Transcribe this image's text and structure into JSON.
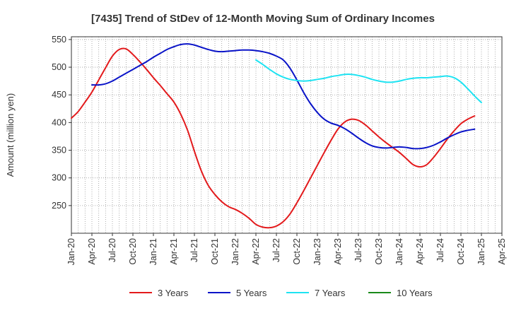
{
  "chart_data": {
    "type": "line",
    "title": "[7435]  Trend of StDev of 12-Month Moving Sum of Ordinary Incomes",
    "xlabel": "",
    "ylabel": "Amount (million yen)",
    "ylim": [
      200,
      555
    ],
    "yticks": [
      250,
      300,
      350,
      400,
      450,
      500,
      550
    ],
    "xlim": [
      "2020-01",
      "2025-04"
    ],
    "xticks": [
      "Jan-20",
      "Apr-20",
      "Jul-20",
      "Oct-20",
      "Jan-21",
      "Apr-21",
      "Jul-21",
      "Oct-21",
      "Jan-22",
      "Apr-22",
      "Jul-22",
      "Oct-22",
      "Jan-23",
      "Apr-23",
      "Jul-23",
      "Oct-23",
      "Jan-24",
      "Apr-24",
      "Jul-24",
      "Oct-24",
      "Jan-25",
      "Apr-25"
    ],
    "grid": true,
    "legend_position": "bottom",
    "series": [
      {
        "name": "3 Years",
        "color": "#e31a1c",
        "start": "2020-01",
        "values": [
          408,
          420,
          437,
          455,
          477,
          499,
          520,
          532,
          533,
          523,
          510,
          496,
          481,
          467,
          452,
          437,
          415,
          386,
          348,
          313,
          287,
          270,
          257,
          248,
          243,
          236,
          227,
          216,
          211,
          210,
          213,
          221,
          235,
          255,
          277,
          300,
          323,
          346,
          368,
          388,
          401,
          406,
          404,
          396,
          385,
          374,
          364,
          355,
          346,
          335,
          324,
          320,
          324,
          337,
          353,
          370,
          385,
          398,
          406,
          412
        ]
      },
      {
        "name": "5 Years",
        "color": "#0a14c8",
        "start": "2020-04",
        "values": [
          468,
          468,
          470,
          475,
          482,
          489,
          496,
          503,
          510,
          518,
          525,
          532,
          537,
          541,
          542,
          540,
          536,
          532,
          529,
          528,
          529,
          530,
          531,
          531,
          530,
          528,
          525,
          520,
          513,
          498,
          477,
          454,
          434,
          418,
          406,
          399,
          395,
          389,
          381,
          372,
          364,
          358,
          355,
          354,
          355,
          356,
          355,
          353,
          353,
          355,
          359,
          365,
          372,
          378,
          383,
          386,
          388
        ]
      },
      {
        "name": "7 Years",
        "color": "#1ee3f2",
        "start": "2022-04",
        "values": [
          513,
          505,
          496,
          488,
          482,
          478,
          476,
          475,
          476,
          478,
          480,
          483,
          485,
          487,
          487,
          485,
          482,
          478,
          475,
          473,
          473,
          475,
          478,
          480,
          481,
          481,
          482,
          483,
          484,
          481,
          473,
          461,
          448,
          436
        ]
      },
      {
        "name": "10 Years",
        "color": "#1a8a1a",
        "start": "",
        "values": []
      }
    ]
  }
}
